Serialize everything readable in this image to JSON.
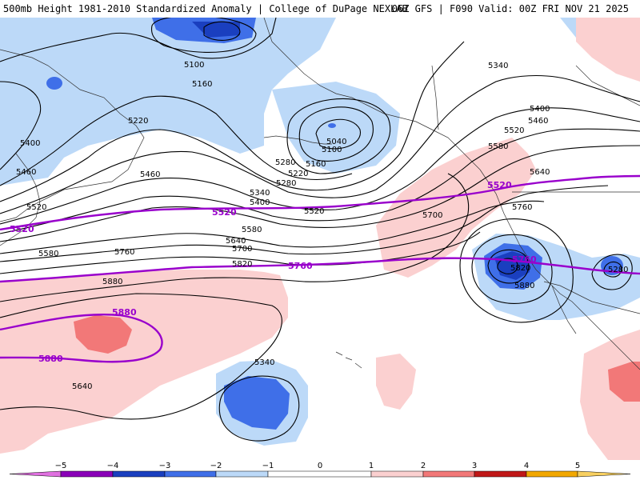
{
  "header": {
    "title": "500mb Height 1981-2010 Standardized Anomaly | College of DuPage NEXLAB",
    "run_info": "06Z GFS | F090 Valid: 00Z FRI NOV 21 2025"
  },
  "colors": {
    "neg5": "#e070e0",
    "neg4": "#8a00b8",
    "neg3": "#1a3fbf",
    "neg2": "#3f6fe8",
    "neg1": "#bcd9f8",
    "zero": "#ffffff",
    "pos1": "#fbd0d0",
    "pos2": "#f27878",
    "pos3": "#c01818",
    "pos4": "#f2a800",
    "pos5": "#f8d060",
    "contour": "#000000",
    "highlight_contour": "#9900cc",
    "coast": "#333333"
  },
  "colorbar": {
    "ticks": [
      "−5",
      "−4",
      "−3",
      "−2",
      "−1",
      "0",
      "1",
      "2",
      "3",
      "4",
      "5"
    ]
  },
  "height_labels": [
    "5100",
    "5160",
    "5220",
    "5280",
    "5340",
    "5400",
    "5460",
    "5520",
    "5580",
    "5640",
    "5700",
    "5760",
    "5820",
    "5880",
    "5040",
    "5100",
    "5160",
    "5220",
    "5280",
    "5340",
    "5400",
    "5460",
    "5520",
    "5580",
    "5640",
    "5700",
    "5760",
    "5820",
    "5880",
    "5280",
    "5340",
    "5400",
    "5460",
    "5520",
    "5580",
    "5640",
    "5640",
    "5580",
    "5700",
    "5640",
    "5820",
    "5100",
    "5160",
    "5400",
    "5700"
  ],
  "highlight_labels": [
    "5520",
    "5520",
    "5520",
    "5760",
    "5760",
    "5880",
    "5880"
  ]
}
